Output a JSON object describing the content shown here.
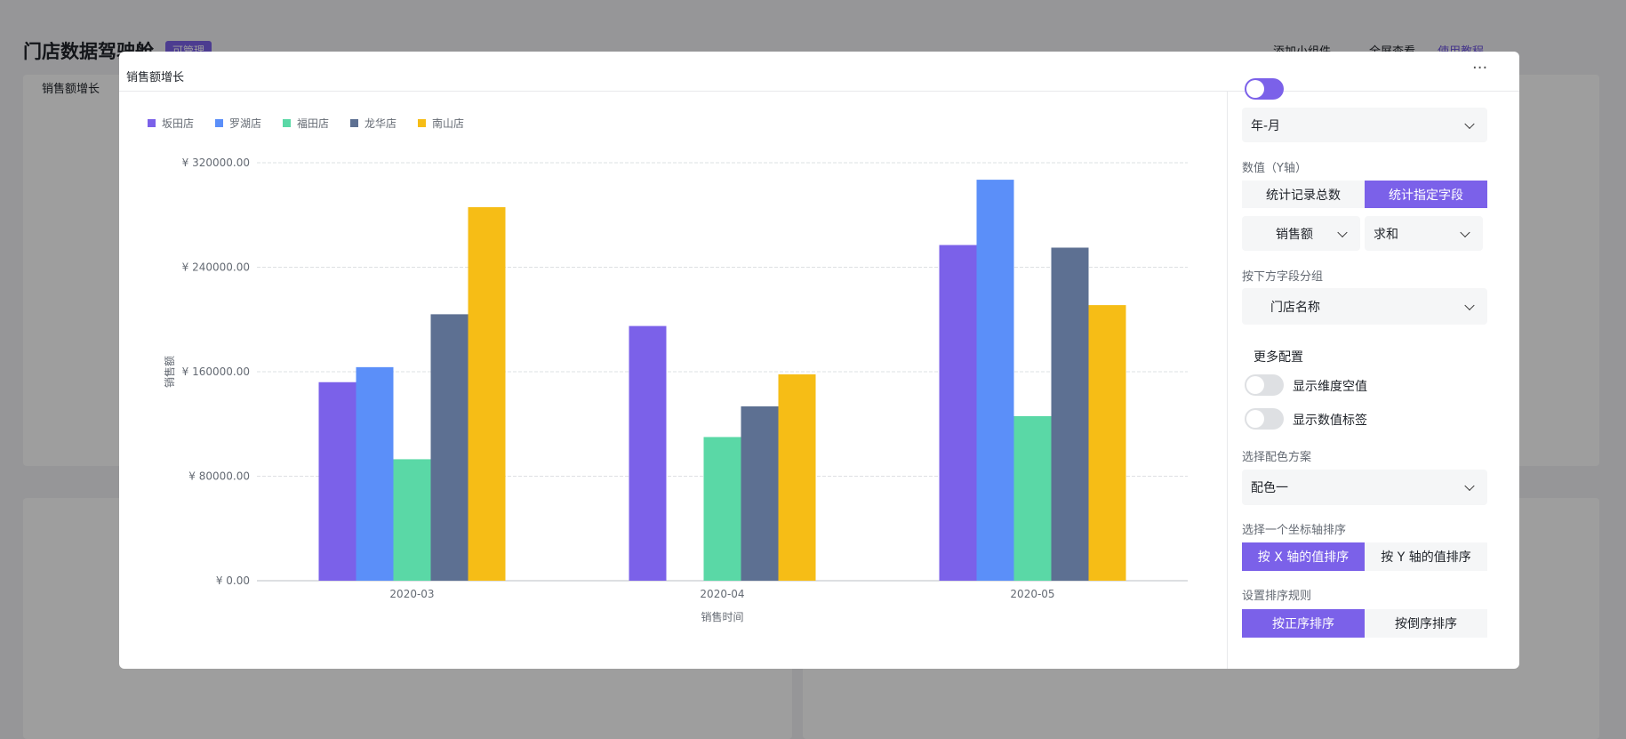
{
  "background": {
    "title": "门店数据驾驶舱",
    "badge": "可管理",
    "actions": [
      "添加小组件",
      "全屏查看",
      "使用教程"
    ],
    "panel_title": "销售额增长"
  },
  "modal": {
    "title": "销售额增长",
    "settings": {
      "x_granularity": "年-月",
      "y_label": "数值（Y轴）",
      "y_options": [
        "统计记录总数",
        "统计指定字段"
      ],
      "field": "销售额",
      "aggregate": "求和",
      "group_label": "按下方字段分组",
      "group_field": "门店名称",
      "more": "更多配置",
      "toggles": [
        "显示维度空值",
        "显示数值标签"
      ],
      "palette_label": "选择配色方案",
      "palette": "配色一",
      "sort_axis_label": "选择一个坐标轴排序",
      "sort_axis": [
        "按 X 轴的值排序",
        "按 Y 轴的值排序"
      ],
      "sort_rule_label": "设置排序规则",
      "sort_rule": [
        "按正序排序",
        "按倒序排序"
      ]
    }
  },
  "chart_data": {
    "type": "bar",
    "x_label": "销售时间",
    "y_label": "销售额",
    "categories": [
      "2020-03",
      "2020-04",
      "2020-05"
    ],
    "series": [
      {
        "name": "坂田店",
        "color": "#7b61e9",
        "values": [
          152000,
          195000,
          257000
        ]
      },
      {
        "name": "罗湖店",
        "color": "#5b8ff9",
        "values": [
          163500,
          null,
          307000
        ]
      },
      {
        "name": "福田店",
        "color": "#5ad8a6",
        "values": [
          93000,
          110000,
          126000
        ]
      },
      {
        "name": "龙华店",
        "color": "#5d7092",
        "values": [
          204000,
          133500,
          255000
        ]
      },
      {
        "name": "南山店",
        "color": "#f6bd16",
        "values": [
          286000,
          158000,
          211000
        ]
      }
    ],
    "ylim": [
      0,
      320000
    ],
    "yticks": [
      {
        "value": 0,
        "label": "¥ 0.00"
      },
      {
        "value": 80000,
        "label": "¥ 80000.00"
      },
      {
        "value": 160000,
        "label": "¥ 160000.00"
      },
      {
        "value": 240000,
        "label": "¥ 240000.00"
      },
      {
        "value": 320000,
        "label": "¥ 320000.00"
      }
    ],
    "grid": true
  }
}
